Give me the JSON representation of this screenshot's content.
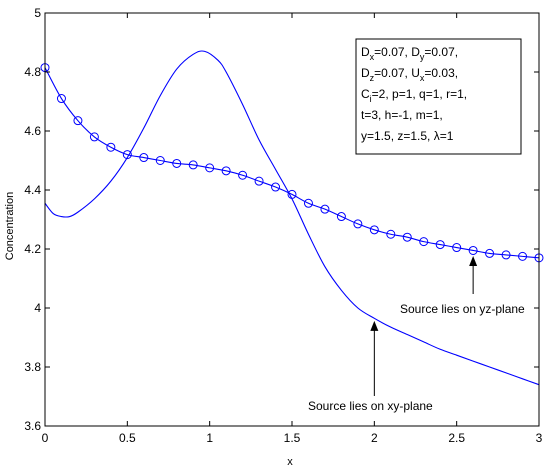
{
  "chart_data": {
    "type": "line",
    "title": "",
    "xlabel": "x",
    "ylabel": "Concentration",
    "xlim": [
      0,
      3
    ],
    "ylim": [
      3.6,
      5
    ],
    "xticks": [
      "0",
      "0.5",
      "1",
      "1.5",
      "2",
      "2.5",
      "3"
    ],
    "yticks": [
      "3.6",
      "3.8",
      "4",
      "4.2",
      "4.4",
      "4.6",
      "4.8",
      "5"
    ],
    "grid": false,
    "series": [
      {
        "color": "#0000ff",
        "marker": "circle",
        "x": [
          0,
          0.1,
          0.2,
          0.3,
          0.4,
          0.5,
          0.6,
          0.7,
          0.8,
          0.9,
          1.0,
          1.1,
          1.2,
          1.3,
          1.4,
          1.5,
          1.6,
          1.7,
          1.8,
          1.9,
          2.0,
          2.1,
          2.2,
          2.3,
          2.4,
          2.5,
          2.6,
          2.7,
          2.8,
          2.9,
          3.0
        ],
        "y": [
          4.815,
          4.71,
          4.635,
          4.58,
          4.545,
          4.52,
          4.51,
          4.5,
          4.49,
          4.485,
          4.475,
          4.465,
          4.45,
          4.43,
          4.41,
          4.385,
          4.355,
          4.335,
          4.31,
          4.285,
          4.265,
          4.25,
          4.24,
          4.225,
          4.215,
          4.205,
          4.195,
          4.185,
          4.18,
          4.175,
          4.17
        ]
      },
      {
        "color": "#0000ff",
        "marker": "none",
        "x": [
          0,
          0.05,
          0.1,
          0.15,
          0.2,
          0.3,
          0.4,
          0.5,
          0.6,
          0.7,
          0.8,
          0.9,
          0.97,
          1.05,
          1.1,
          1.2,
          1.3,
          1.4,
          1.5,
          1.6,
          1.7,
          1.8,
          1.9,
          2.0,
          2.1,
          2.2,
          2.3,
          2.4,
          2.5,
          2.6,
          2.7,
          2.8,
          2.9,
          3.0
        ],
        "y": [
          4.355,
          4.32,
          4.31,
          4.31,
          4.325,
          4.37,
          4.43,
          4.51,
          4.61,
          4.72,
          4.81,
          4.86,
          4.87,
          4.84,
          4.8,
          4.69,
          4.57,
          4.47,
          4.37,
          4.25,
          4.14,
          4.06,
          4.0,
          3.965,
          3.935,
          3.91,
          3.885,
          3.86,
          3.84,
          3.82,
          3.8,
          3.78,
          3.76,
          3.74
        ]
      }
    ],
    "legend_box": {
      "placement": "top-right",
      "lines": [
        [
          "D",
          "x",
          "=0.07, ",
          "D",
          "y",
          "=0.07,"
        ],
        [
          "D",
          "z",
          "=0.07, ",
          "U",
          "x",
          "=0.03,"
        ],
        [
          "C",
          "i",
          "=2, p=1, q=1, r=1,",
          "",
          "",
          ""
        ],
        [
          " t=3, h=-1, m=1,",
          "",
          "",
          "",
          "",
          ""
        ],
        [
          "y=1.5,  z=1.5, λ=1",
          "",
          "",
          "",
          "",
          ""
        ]
      ]
    },
    "annotations": [
      {
        "text": "Source lies on yz-plane",
        "arrow_to": [
          2.6,
          4.19
        ]
      },
      {
        "text": "Source lies on xy-plane",
        "arrow_to": [
          2.0,
          3.97
        ]
      }
    ]
  }
}
